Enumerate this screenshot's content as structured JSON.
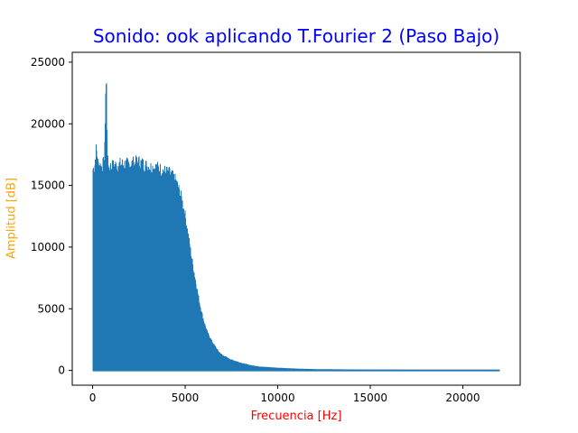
{
  "chart_data": {
    "type": "line",
    "title": "Sonido: ook aplicando T.Fourier 2 (Paso Bajo)",
    "xlabel": "Frecuencia [Hz]",
    "ylabel": "Amplitud [dB]",
    "xlim": [
      -1100,
      23100
    ],
    "ylim": [
      -1200,
      25800
    ],
    "xticks": [
      0,
      5000,
      10000,
      15000,
      20000
    ],
    "xtick_labels": [
      "0",
      "5000",
      "10000",
      "15000",
      "20000"
    ],
    "yticks": [
      0,
      5000,
      10000,
      15000,
      20000,
      25000
    ],
    "ytick_labels": [
      "0",
      "5000",
      "10000",
      "15000",
      "20000",
      "25000"
    ],
    "grid": false,
    "colors": {
      "series": "#1f77b4",
      "title": "#0000ff",
      "xlabel": "#ff0000",
      "ylabel": "#ffa500"
    },
    "series": [
      {
        "name": "",
        "description_values": "spectrum upper envelope (Hz, amplitude)",
        "x": [
          0,
          100,
          200,
          300,
          400,
          500,
          600,
          650,
          700,
          750,
          800,
          850,
          900,
          1000,
          1200,
          1500,
          2000,
          2500,
          3000,
          3500,
          3900,
          4200,
          4500,
          4800,
          5000,
          5200,
          5400,
          5600,
          5800,
          6000,
          6200,
          6500,
          6800,
          7000,
          7500,
          8000,
          8500,
          9000,
          10000,
          11000,
          12000,
          14000,
          16000,
          18000,
          20000,
          22000
        ],
        "y": [
          16900,
          17000,
          18600,
          17300,
          17200,
          17100,
          17400,
          17900,
          23300,
          24400,
          17600,
          17300,
          17000,
          17100,
          17200,
          17300,
          17300,
          17500,
          17100,
          17000,
          16700,
          16500,
          15900,
          14500,
          13000,
          11000,
          9000,
          7200,
          5500,
          4200,
          3200,
          2300,
          1600,
          1300,
          900,
          650,
          450,
          330,
          220,
          150,
          110,
          80,
          60,
          45,
          40,
          30
        ]
      }
    ]
  }
}
